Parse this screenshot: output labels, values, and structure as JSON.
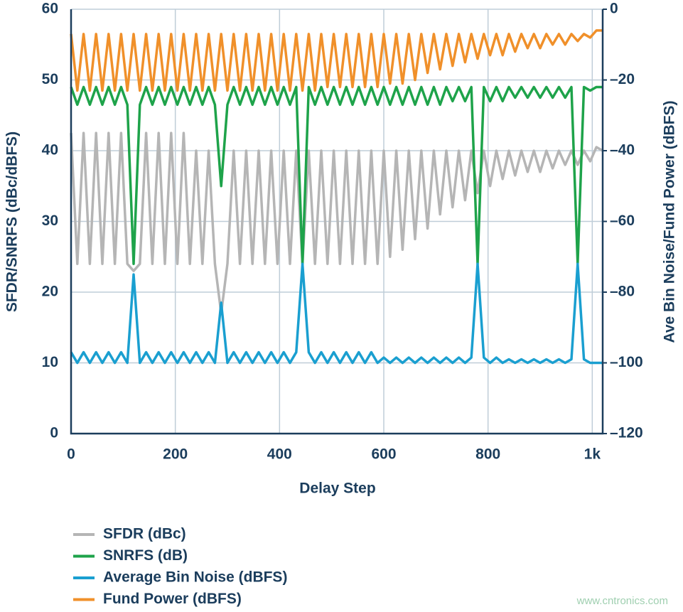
{
  "chart_data": {
    "type": "line",
    "xlabel": "Delay Step",
    "ylabel": "SFDR/SNRFS (dBc/dBFS)",
    "y2label": "Ave Bin Noise/Fund Power (dBFS)",
    "watermark": "www.cntronics.com",
    "grid": true,
    "legend": "bottom-left",
    "xlim": [
      0,
      1020
    ],
    "xticks": [
      0,
      200,
      400,
      600,
      800,
      {
        "value": 1000,
        "label": "1k"
      }
    ],
    "ylim": [
      0,
      60
    ],
    "yticks": [
      0,
      10,
      20,
      30,
      40,
      50,
      60
    ],
    "y2lim": [
      -120,
      0
    ],
    "y2ticks": [
      {
        "value": 0,
        "label": "0"
      },
      {
        "value": -20,
        "label": "–20"
      },
      {
        "value": -40,
        "label": "–40"
      },
      {
        "value": -60,
        "label": "–60"
      },
      {
        "value": -80,
        "label": "–80"
      },
      {
        "value": -100,
        "label": "–100"
      },
      {
        "value": -120,
        "label": "–120"
      }
    ],
    "x": [
      0,
      12,
      24,
      36,
      48,
      60,
      72,
      84,
      96,
      108,
      120,
      132,
      144,
      156,
      168,
      180,
      192,
      204,
      216,
      228,
      240,
      252,
      264,
      276,
      288,
      300,
      312,
      324,
      336,
      348,
      360,
      372,
      384,
      396,
      408,
      420,
      432,
      444,
      456,
      468,
      480,
      492,
      504,
      516,
      528,
      540,
      552,
      564,
      576,
      588,
      600,
      612,
      624,
      636,
      648,
      660,
      672,
      684,
      696,
      708,
      720,
      732,
      744,
      756,
      768,
      780,
      792,
      804,
      816,
      828,
      840,
      852,
      864,
      876,
      888,
      900,
      912,
      924,
      936,
      948,
      960,
      972,
      984,
      996,
      1008,
      1020
    ],
    "series": [
      {
        "name": "SFDR (dBc)",
        "color": "#b5b5b5",
        "values": [
          42.5,
          24,
          42.5,
          24,
          42.5,
          24,
          42.5,
          24,
          42.5,
          24,
          23,
          24,
          42.5,
          24,
          42.5,
          24,
          42.5,
          24,
          42.5,
          24,
          40,
          24,
          40,
          24,
          17,
          24,
          40,
          24,
          40,
          24,
          40,
          24,
          40,
          24,
          40,
          24,
          40,
          24,
          40,
          24,
          40,
          24,
          40,
          24,
          40,
          24,
          40,
          24,
          40,
          24,
          40,
          25,
          40,
          26,
          40,
          27.5,
          40,
          29,
          40,
          31,
          40,
          32,
          40,
          33,
          40,
          34,
          40,
          35,
          40,
          36,
          40,
          36.5,
          40,
          37,
          40,
          37,
          40,
          37.5,
          40,
          38,
          40,
          38,
          40,
          38.5,
          40.5,
          40
        ]
      },
      {
        "name": "SNRFS (dB)",
        "color": "#1ea34a",
        "values": [
          49,
          46.5,
          49,
          46.5,
          49,
          46.5,
          49,
          46.5,
          49,
          46.5,
          24,
          46.5,
          49,
          46.5,
          49,
          46.5,
          49,
          46.5,
          49,
          46.5,
          49,
          46.5,
          49,
          46.5,
          35,
          46.5,
          49,
          46.5,
          49,
          46.5,
          49,
          46.5,
          49,
          46.5,
          49,
          46.5,
          49,
          24,
          49,
          46.5,
          49,
          46.5,
          49,
          46.5,
          49,
          46.5,
          49,
          46.5,
          49,
          46.5,
          49,
          46.5,
          49,
          46.5,
          49,
          46.5,
          49,
          46.5,
          49,
          46.5,
          49,
          47,
          49,
          47,
          49,
          24,
          49,
          47,
          49,
          47,
          49,
          47.5,
          49,
          47.5,
          49,
          47.5,
          49,
          47.5,
          49,
          47.5,
          49,
          24,
          49,
          48.5,
          49,
          49
        ]
      },
      {
        "name": "Average Bin Noise (dBFS)",
        "color": "#1a9fd0",
        "axis": "y2",
        "values": [
          -97,
          -100,
          -97,
          -100,
          -97,
          -100,
          -97,
          -100,
          -97,
          -100,
          -75,
          -100,
          -97,
          -100,
          -97,
          -100,
          -97,
          -100,
          -97,
          -100,
          -97,
          -100,
          -97,
          -100,
          -83,
          -100,
          -97,
          -100,
          -97,
          -100,
          -97,
          -100,
          -97,
          -100,
          -97,
          -100,
          -97,
          -72,
          -97,
          -100,
          -97,
          -100,
          -97,
          -100,
          -97,
          -100,
          -97,
          -100,
          -97,
          -100,
          -98.5,
          -100,
          -98.5,
          -100,
          -98.5,
          -100,
          -98.5,
          -100,
          -98.5,
          -100,
          -98.5,
          -100,
          -98.5,
          -100,
          -98.5,
          -72,
          -98.5,
          -100,
          -98.5,
          -100,
          -99,
          -100,
          -99,
          -100,
          -99,
          -100,
          -99,
          -100,
          -99,
          -100,
          -99,
          -72,
          -99,
          -100,
          -100,
          -100
        ]
      },
      {
        "name": "Fund Power (dBFS)",
        "color": "#f0902a",
        "axis": "y2",
        "values": [
          -7,
          -23,
          -7,
          -23,
          -7,
          -23,
          -7,
          -23,
          -7,
          -23,
          -7,
          -23,
          -7,
          -23,
          -7,
          -23,
          -7,
          -23,
          -7,
          -23,
          -7,
          -23,
          -7,
          -23,
          -7,
          -23,
          -7,
          -23,
          -7,
          -23,
          -7,
          -23,
          -7,
          -23,
          -7,
          -23,
          -7,
          -23,
          -7,
          -23,
          -7,
          -22,
          -7,
          -22,
          -7,
          -22,
          -7,
          -22,
          -7,
          -22,
          -7,
          -21,
          -7,
          -21,
          -7,
          -20,
          -7,
          -18,
          -7,
          -17,
          -7,
          -16,
          -7,
          -15,
          -7,
          -14,
          -7,
          -13,
          -7,
          -13,
          -7,
          -12,
          -7,
          -11,
          -7,
          -11,
          -7,
          -10,
          -7,
          -10,
          -7,
          -9,
          -7,
          -8,
          -6,
          -6
        ]
      }
    ]
  }
}
